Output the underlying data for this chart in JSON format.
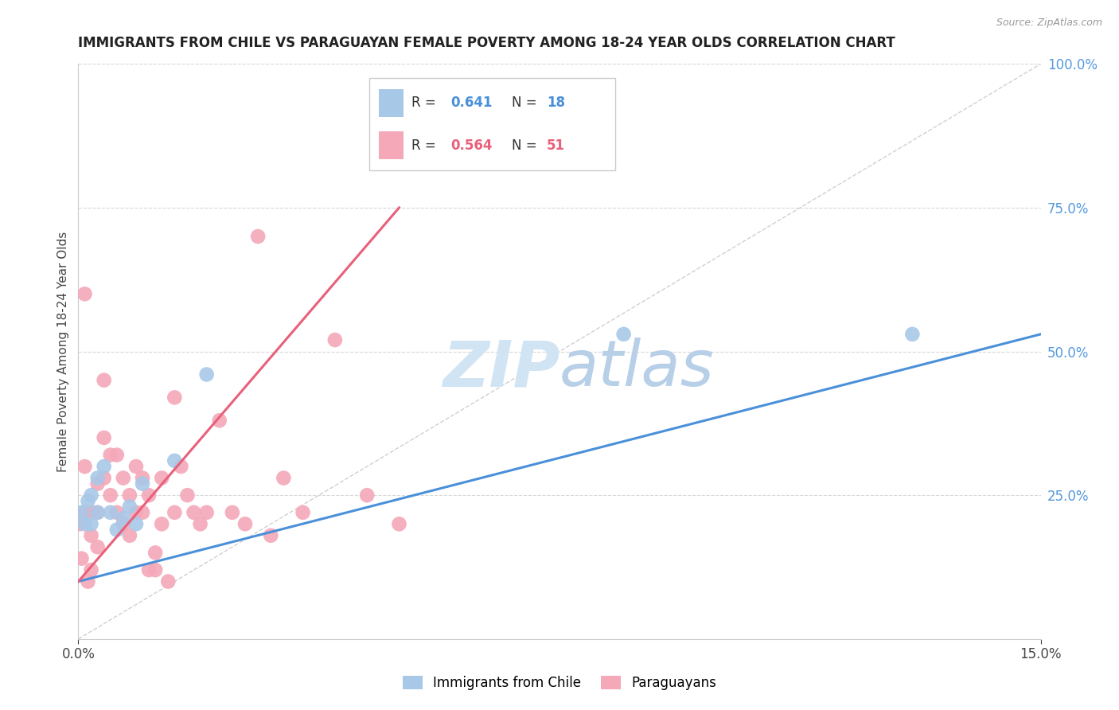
{
  "title": "IMMIGRANTS FROM CHILE VS PARAGUAYAN FEMALE POVERTY AMONG 18-24 YEAR OLDS CORRELATION CHART",
  "source": "Source: ZipAtlas.com",
  "ylabel": "Female Poverty Among 18-24 Year Olds",
  "xlim": [
    0.0,
    0.15
  ],
  "ylim": [
    0.0,
    1.0
  ],
  "legend_blue_label": "Immigrants from Chile",
  "legend_pink_label": "Paraguayans",
  "R_blue": "0.641",
  "N_blue": "18",
  "R_pink": "0.564",
  "N_pink": "51",
  "blue_color": "#a8c8e8",
  "pink_color": "#f4a8b8",
  "blue_line_color": "#4a90d9",
  "pink_line_color": "#e8607a",
  "ref_line_color": "#d0d0d0",
  "grid_color": "#d8d8d8",
  "title_color": "#222222",
  "axis_label_color": "#444444",
  "right_tick_color": "#5599dd",
  "watermark_color": "#d0e4f4",
  "blue_scatter_x": [
    0.0005,
    0.001,
    0.0015,
    0.002,
    0.002,
    0.003,
    0.003,
    0.004,
    0.005,
    0.006,
    0.007,
    0.008,
    0.009,
    0.01,
    0.015,
    0.02,
    0.085,
    0.13
  ],
  "blue_scatter_y": [
    0.22,
    0.2,
    0.24,
    0.2,
    0.25,
    0.22,
    0.28,
    0.3,
    0.22,
    0.19,
    0.21,
    0.23,
    0.2,
    0.27,
    0.31,
    0.46,
    0.53,
    0.53
  ],
  "pink_scatter_x": [
    0.0002,
    0.0005,
    0.001,
    0.001,
    0.001,
    0.0015,
    0.002,
    0.002,
    0.002,
    0.003,
    0.003,
    0.003,
    0.004,
    0.004,
    0.004,
    0.005,
    0.005,
    0.006,
    0.006,
    0.007,
    0.007,
    0.008,
    0.008,
    0.009,
    0.009,
    0.01,
    0.01,
    0.011,
    0.011,
    0.012,
    0.012,
    0.013,
    0.013,
    0.014,
    0.015,
    0.015,
    0.016,
    0.017,
    0.018,
    0.019,
    0.02,
    0.022,
    0.024,
    0.026,
    0.028,
    0.03,
    0.032,
    0.035,
    0.04,
    0.045,
    0.05
  ],
  "pink_scatter_y": [
    0.2,
    0.14,
    0.22,
    0.6,
    0.3,
    0.1,
    0.22,
    0.18,
    0.12,
    0.27,
    0.22,
    0.16,
    0.35,
    0.28,
    0.45,
    0.25,
    0.32,
    0.32,
    0.22,
    0.28,
    0.2,
    0.25,
    0.18,
    0.22,
    0.3,
    0.28,
    0.22,
    0.25,
    0.12,
    0.15,
    0.12,
    0.28,
    0.2,
    0.1,
    0.42,
    0.22,
    0.3,
    0.25,
    0.22,
    0.2,
    0.22,
    0.38,
    0.22,
    0.2,
    0.7,
    0.18,
    0.28,
    0.22,
    0.52,
    0.25,
    0.2
  ],
  "blue_trend_x": [
    0.0,
    0.15
  ],
  "blue_trend_y": [
    0.1,
    0.53
  ],
  "pink_trend_x": [
    0.0,
    0.05
  ],
  "pink_trend_y": [
    0.1,
    0.75
  ]
}
